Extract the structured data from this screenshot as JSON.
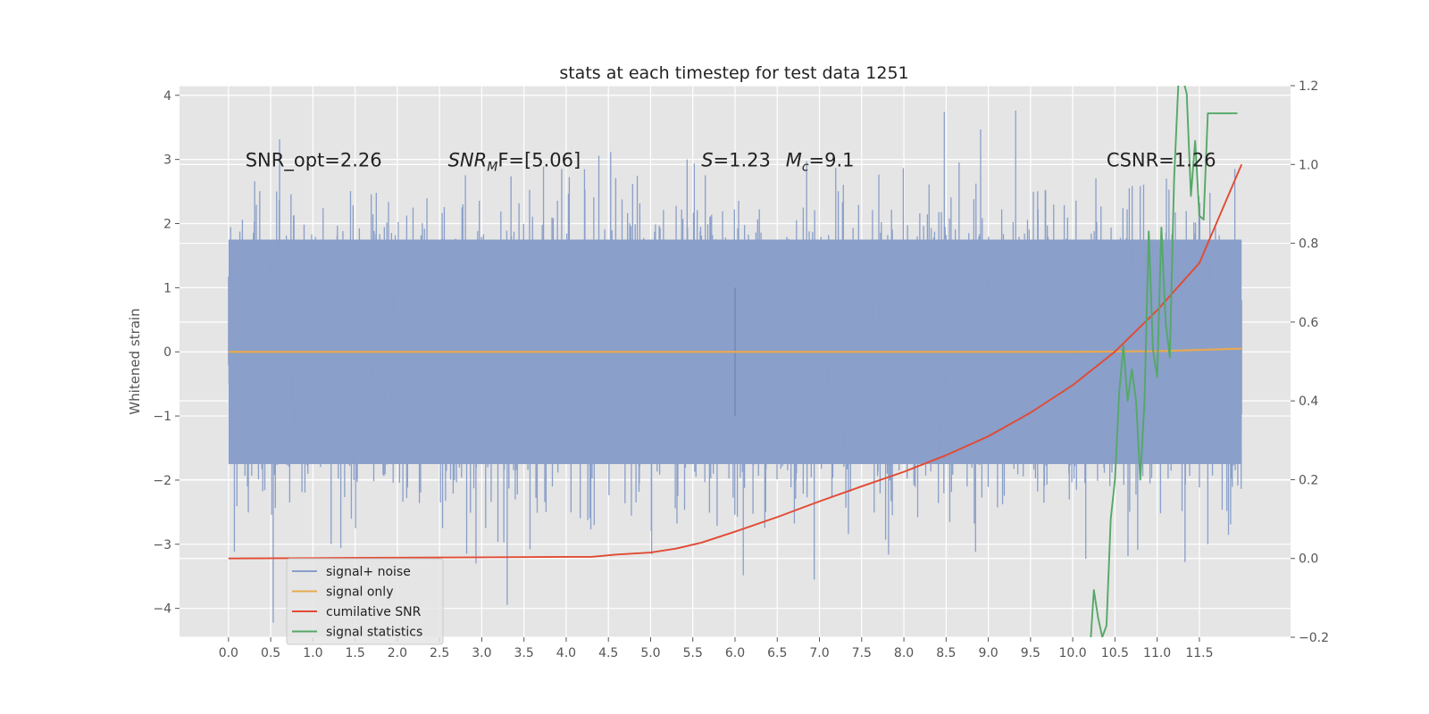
{
  "chart_data": {
    "type": "line",
    "title": "stats at each timestep for test data 1251",
    "xlabel": "",
    "ylabel": "Whitened strain",
    "y2label": "",
    "xlim": [
      -0.58,
      12.58
    ],
    "ylim": [
      -4.45,
      4.15
    ],
    "y2lim": [
      -0.2,
      1.2
    ],
    "xticks": [
      "0.0",
      "0.5",
      "1.0",
      "1.5",
      "2.0",
      "2.5",
      "3.0",
      "3.5",
      "4.0",
      "4.5",
      "5.0",
      "5.5",
      "6.0",
      "6.5",
      "7.0",
      "7.5",
      "8.0",
      "8.5",
      "9.0",
      "9.5",
      "10.0",
      "10.5",
      "11.0",
      "11.5"
    ],
    "yticks": [
      "4",
      "3",
      "2",
      "1",
      "0",
      "−1",
      "−2",
      "−3",
      "−4"
    ],
    "yticks_values": [
      4,
      3,
      2,
      1,
      0,
      -1,
      -2,
      -3,
      -4
    ],
    "y2ticks": [
      "1.2",
      "1.0",
      "0.8",
      "0.6",
      "0.4",
      "0.2",
      "0.0",
      "−0.2"
    ],
    "y2ticks_values": [
      1.2,
      1.0,
      0.8,
      0.6,
      0.4,
      0.2,
      0.0,
      -0.2
    ],
    "grid": true,
    "legend_position": "lower-left",
    "annotations": [
      {
        "id": "snr-opt",
        "text": "SNR_opt=2.26",
        "x": 0.2,
        "y": 3.0
      },
      {
        "id": "snr-mf",
        "text_base": "SNR",
        "text_sub": "M",
        "text_rest": "F=[5.06]",
        "x": 2.6,
        "y": 3.0
      },
      {
        "id": "s-val",
        "text_italic": "S",
        "text_rest": "=1.23",
        "x": 5.6,
        "y": 3.0
      },
      {
        "id": "mc-val",
        "text_italic": "M",
        "text_sub": "c",
        "text_rest": "=9.1",
        "x": 6.6,
        "y": 3.0
      },
      {
        "id": "csnr",
        "text": "CSNR=1.26",
        "x": 10.4,
        "y": 3.0
      }
    ],
    "series": [
      {
        "name": "signal+ noise",
        "axis": "left",
        "color": "#8a9fc9",
        "kind": "noise",
        "x_range": [
          0.0,
          12.0
        ],
        "sigma": 1.0,
        "band": [
          -1.75,
          1.75
        ]
      },
      {
        "name": "signal only",
        "axis": "left",
        "color": "#e8a951",
        "x": [
          0.0,
          6.0,
          10.0,
          11.0,
          11.5,
          12.0
        ],
        "y": [
          0.0,
          0.0,
          0.0,
          0.01,
          0.03,
          0.05
        ]
      },
      {
        "name": "cumilative SNR",
        "axis": "right",
        "color": "#e24a33",
        "x": [
          0.0,
          1.0,
          2.0,
          3.0,
          4.0,
          4.3,
          4.6,
          5.0,
          5.3,
          5.6,
          6.0,
          6.5,
          7.0,
          7.5,
          8.0,
          8.5,
          9.0,
          9.5,
          10.0,
          10.5,
          11.0,
          11.5,
          12.0
        ],
        "y": [
          0.0,
          0.001,
          0.002,
          0.003,
          0.004,
          0.004,
          0.01,
          0.015,
          0.025,
          0.04,
          0.068,
          0.105,
          0.145,
          0.183,
          0.22,
          0.262,
          0.31,
          0.37,
          0.44,
          0.525,
          0.63,
          0.75,
          1.0
        ]
      },
      {
        "name": "signal statistics",
        "axis": "right",
        "color": "#55a868",
        "x": [
          10.2,
          10.25,
          10.3,
          10.35,
          10.4,
          10.45,
          10.5,
          10.55,
          10.6,
          10.65,
          10.7,
          10.75,
          10.8,
          10.85,
          10.9,
          10.95,
          11.0,
          11.05,
          11.1,
          11.15,
          11.2,
          11.25,
          11.3,
          11.35,
          11.4,
          11.45,
          11.5,
          11.55,
          11.6,
          11.65,
          11.7,
          11.75,
          11.8,
          11.85,
          11.9,
          11.95
        ],
        "y": [
          -0.25,
          -0.08,
          -0.15,
          -0.2,
          -0.17,
          0.1,
          0.2,
          0.42,
          0.54,
          0.4,
          0.48,
          0.4,
          0.2,
          0.4,
          0.83,
          0.53,
          0.46,
          0.84,
          0.6,
          0.51,
          0.96,
          1.2,
          1.22,
          1.18,
          0.92,
          1.06,
          0.87,
          0.86,
          1.13,
          1.13,
          1.13,
          1.13,
          1.13,
          1.13,
          1.13,
          1.13
        ]
      }
    ]
  }
}
